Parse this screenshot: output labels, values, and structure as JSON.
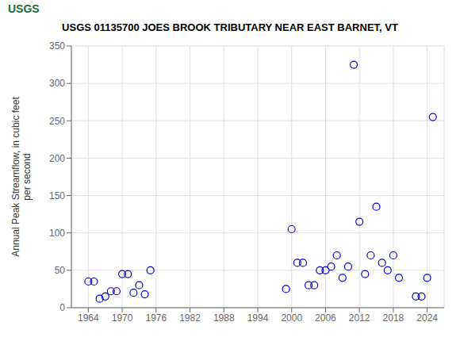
{
  "chart_data": {
    "type": "scatter",
    "title": "USGS 01135700 JOES BROOK TRIBUTARY NEAR EAST BARNET, VT",
    "annotations": [
      {
        "text": "USGS"
      }
    ],
    "ylabel": "Annual Peak Streamflow, in cubic feet\nper second",
    "x": [
      1964,
      1965,
      1966,
      1967,
      1968,
      1969,
      1970,
      1971,
      1972,
      1973,
      1974,
      1975,
      1999,
      2000,
      2001,
      2002,
      2003,
      2004,
      2005,
      2006,
      2007,
      2008,
      2009,
      2010,
      2011,
      2012,
      2013,
      2014,
      2015,
      2016,
      2017,
      2018,
      2019,
      2022,
      2023,
      2024,
      2025
    ],
    "values": [
      35,
      35,
      12,
      15,
      22,
      22,
      45,
      45,
      20,
      30,
      18,
      50,
      25,
      105,
      60,
      60,
      30,
      30,
      50,
      50,
      55,
      70,
      40,
      55,
      325,
      115,
      45,
      70,
      135,
      60,
      50,
      70,
      40,
      15,
      15,
      40,
      255
    ],
    "color": "#0000cc",
    "marker": "circle",
    "xlim": [
      1961,
      2027
    ],
    "xticks": [
      1964,
      1970,
      1976,
      1982,
      1988,
      1994,
      2000,
      2006,
      2012,
      2018,
      2024
    ],
    "ylim": [
      0,
      350
    ],
    "yticks": [
      0,
      50,
      100,
      150,
      200,
      250,
      300,
      350
    ],
    "grid": true
  }
}
